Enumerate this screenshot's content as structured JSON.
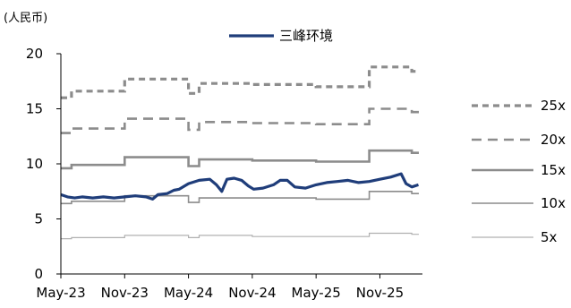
{
  "chart_data": {
    "type": "line",
    "unit_label": "(人民币)",
    "title": "",
    "xlabel": "",
    "ylabel": "",
    "ylim": [
      0,
      20
    ],
    "y_ticks": [
      0,
      5,
      10,
      15,
      20
    ],
    "x_tick_labels": [
      "May-23",
      "Nov-23",
      "May-24",
      "Nov-24",
      "May-25",
      "Nov-25"
    ],
    "x_tick_dates": [
      "2023-05",
      "2023-11",
      "2024-05",
      "2024-11",
      "2025-05",
      "2025-11"
    ],
    "x_range": [
      "2023-05",
      "2026-03"
    ],
    "grid": false,
    "legend_top": {
      "name": "三峰环境",
      "position": "top"
    },
    "legend_right": [
      "25x",
      "20x",
      "15x",
      "10x",
      "5x"
    ],
    "band_series": [
      {
        "name": "25x",
        "color": "#8c8c8c",
        "style": "dashed-thick",
        "steps": [
          [
            "2023-05",
            16.0
          ],
          [
            "2023-06",
            16.6
          ],
          [
            "2023-11",
            17.7
          ],
          [
            "2024-05",
            16.4
          ],
          [
            "2024-06",
            17.3
          ],
          [
            "2024-11",
            17.2
          ],
          [
            "2025-05",
            17.0
          ],
          [
            "2025-10",
            18.8
          ],
          [
            "2026-02",
            18.4
          ]
        ]
      },
      {
        "name": "20x",
        "color": "#8c8c8c",
        "style": "dashed",
        "steps": [
          [
            "2023-05",
            12.8
          ],
          [
            "2023-06",
            13.2
          ],
          [
            "2023-11",
            14.1
          ],
          [
            "2024-05",
            13.1
          ],
          [
            "2024-06",
            13.8
          ],
          [
            "2024-11",
            13.7
          ],
          [
            "2025-05",
            13.6
          ],
          [
            "2025-10",
            15.0
          ],
          [
            "2026-02",
            14.7
          ]
        ]
      },
      {
        "name": "15x",
        "color": "#8c8c8c",
        "style": "solid-thick",
        "steps": [
          [
            "2023-05",
            9.6
          ],
          [
            "2023-06",
            9.9
          ],
          [
            "2023-11",
            10.6
          ],
          [
            "2024-05",
            9.8
          ],
          [
            "2024-06",
            10.4
          ],
          [
            "2024-11",
            10.3
          ],
          [
            "2025-05",
            10.2
          ],
          [
            "2025-10",
            11.2
          ],
          [
            "2026-02",
            11.0
          ]
        ]
      },
      {
        "name": "10x",
        "color": "#8c8c8c",
        "style": "solid",
        "steps": [
          [
            "2023-05",
            6.4
          ],
          [
            "2023-06",
            6.6
          ],
          [
            "2023-11",
            7.1
          ],
          [
            "2024-05",
            6.5
          ],
          [
            "2024-06",
            6.9
          ],
          [
            "2024-11",
            6.9
          ],
          [
            "2025-05",
            6.8
          ],
          [
            "2025-10",
            7.5
          ],
          [
            "2026-02",
            7.3
          ]
        ]
      },
      {
        "name": "5x",
        "color": "#b0b0b0",
        "style": "solid-thin",
        "steps": [
          [
            "2023-05",
            3.2
          ],
          [
            "2023-06",
            3.3
          ],
          [
            "2023-11",
            3.5
          ],
          [
            "2024-05",
            3.3
          ],
          [
            "2024-06",
            3.5
          ],
          [
            "2024-11",
            3.4
          ],
          [
            "2025-05",
            3.4
          ],
          [
            "2025-10",
            3.7
          ],
          [
            "2026-02",
            3.6
          ]
        ]
      }
    ],
    "price_series": {
      "name": "三峰环境",
      "color": "#1f3d7a",
      "points": [
        [
          "2023-05-01",
          7.2
        ],
        [
          "2023-05-20",
          7.0
        ],
        [
          "2023-06-10",
          6.9
        ],
        [
          "2023-07-01",
          7.0
        ],
        [
          "2023-08-01",
          6.9
        ],
        [
          "2023-09-01",
          7.0
        ],
        [
          "2023-10-01",
          6.9
        ],
        [
          "2023-11-01",
          7.0
        ],
        [
          "2023-12-01",
          7.1
        ],
        [
          "2024-01-01",
          7.0
        ],
        [
          "2024-01-20",
          6.8
        ],
        [
          "2024-02-05",
          7.2
        ],
        [
          "2024-03-01",
          7.3
        ],
        [
          "2024-03-20",
          7.6
        ],
        [
          "2024-04-05",
          7.7
        ],
        [
          "2024-05-01",
          8.2
        ],
        [
          "2024-06-01",
          8.5
        ],
        [
          "2024-07-01",
          8.6
        ],
        [
          "2024-07-20",
          8.1
        ],
        [
          "2024-08-05",
          7.5
        ],
        [
          "2024-08-20",
          8.6
        ],
        [
          "2024-09-10",
          8.7
        ],
        [
          "2024-10-01",
          8.5
        ],
        [
          "2024-10-20",
          8.0
        ],
        [
          "2024-11-05",
          7.7
        ],
        [
          "2024-12-01",
          7.8
        ],
        [
          "2025-01-01",
          8.1
        ],
        [
          "2025-01-20",
          8.5
        ],
        [
          "2025-02-10",
          8.5
        ],
        [
          "2025-03-01",
          7.9
        ],
        [
          "2025-04-01",
          7.8
        ],
        [
          "2025-05-01",
          8.1
        ],
        [
          "2025-06-01",
          8.3
        ],
        [
          "2025-07-01",
          8.4
        ],
        [
          "2025-08-01",
          8.5
        ],
        [
          "2025-09-01",
          8.3
        ],
        [
          "2025-10-01",
          8.4
        ],
        [
          "2025-11-01",
          8.6
        ],
        [
          "2025-12-01",
          8.8
        ],
        [
          "2026-01-01",
          9.1
        ],
        [
          "2026-01-15",
          8.2
        ],
        [
          "2026-02-01",
          7.9
        ],
        [
          "2026-02-20",
          8.1
        ]
      ]
    }
  }
}
